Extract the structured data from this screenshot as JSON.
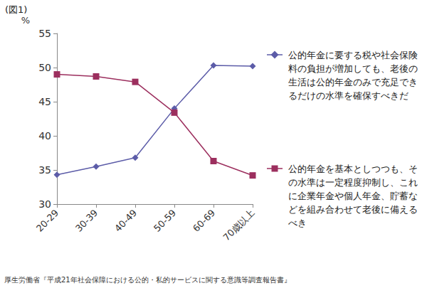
{
  "chart_data": {
    "type": "line",
    "title": "(図1)",
    "y_label": "%",
    "categories": [
      "20-29",
      "30-39",
      "40-49",
      "50-59",
      "60-69",
      "70歳以上"
    ],
    "series": [
      {
        "name": "公的年金に要する税や社会保険料の負担が増加しても、老後の生活は公的年金のみで充足できるだけの水準を確保すべきだ",
        "color": "#5c5ca8",
        "marker": "diamond",
        "values": [
          34.3,
          35.5,
          36.8,
          44.0,
          50.3,
          50.2
        ]
      },
      {
        "name": "公的年金を基本としつつも、その水準は一定程度抑制し、これに企業年金や個人年金、貯蓄などを組み合わせて老後に備えるべき",
        "color": "#9c2f5e",
        "marker": "square",
        "values": [
          49.0,
          48.7,
          47.9,
          43.4,
          36.3,
          34.2
        ]
      }
    ],
    "ylim": [
      30,
      55
    ],
    "yticks": [
      30,
      35,
      40,
      45,
      50,
      55
    ],
    "grid": false,
    "legend": "right",
    "source": "厚生労働省『平成21年社会保障における公的・私的サービスに関する意識等調査報告書』"
  }
}
